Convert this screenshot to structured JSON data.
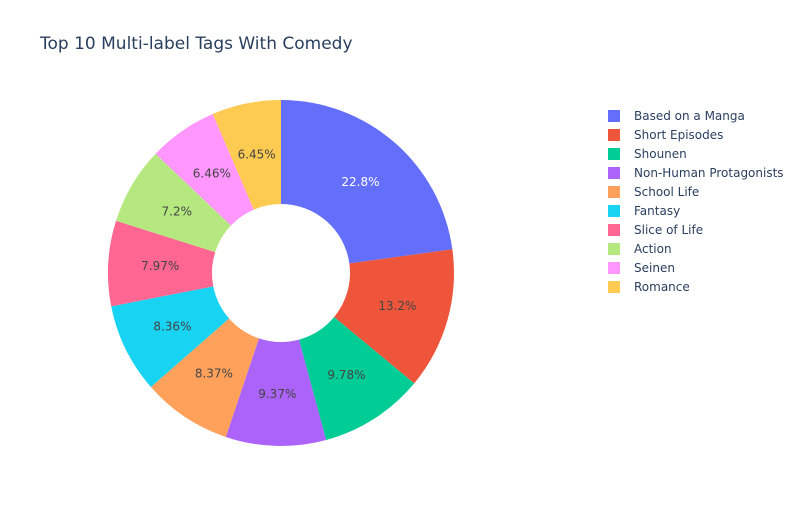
{
  "title": "Top 10 Multi-label Tags With Comedy",
  "chart_data": {
    "type": "pie",
    "title": "Top 10 Multi-label Tags With Comedy",
    "hole": true,
    "direction": "clockwise",
    "legend_position": "right",
    "slices": [
      {
        "label": "Based on a Manga",
        "value": 22.8,
        "percent_label": "22.8%",
        "color": "#636efa"
      },
      {
        "label": "Short Episodes",
        "value": 13.2,
        "percent_label": "13.2%",
        "color": "#EF553B"
      },
      {
        "label": "Shounen",
        "value": 9.78,
        "percent_label": "9.78%",
        "color": "#00cc96"
      },
      {
        "label": "Non-Human Protagonists",
        "value": 9.37,
        "percent_label": "9.37%",
        "color": "#ab63fa"
      },
      {
        "label": "School Life",
        "value": 8.37,
        "percent_label": "8.37%",
        "color": "#FFA15A"
      },
      {
        "label": "Fantasy",
        "value": 8.36,
        "percent_label": "8.36%",
        "color": "#19d3f3"
      },
      {
        "label": "Slice of Life",
        "value": 7.97,
        "percent_label": "7.97%",
        "color": "#FF6692"
      },
      {
        "label": "Action",
        "value": 7.2,
        "percent_label": "7.2%",
        "color": "#B6E880"
      },
      {
        "label": "Seinen",
        "value": 6.46,
        "percent_label": "6.46%",
        "color": "#FF97FF"
      },
      {
        "label": "Romance",
        "value": 6.45,
        "percent_label": "6.45%",
        "color": "#FECB52"
      }
    ]
  }
}
